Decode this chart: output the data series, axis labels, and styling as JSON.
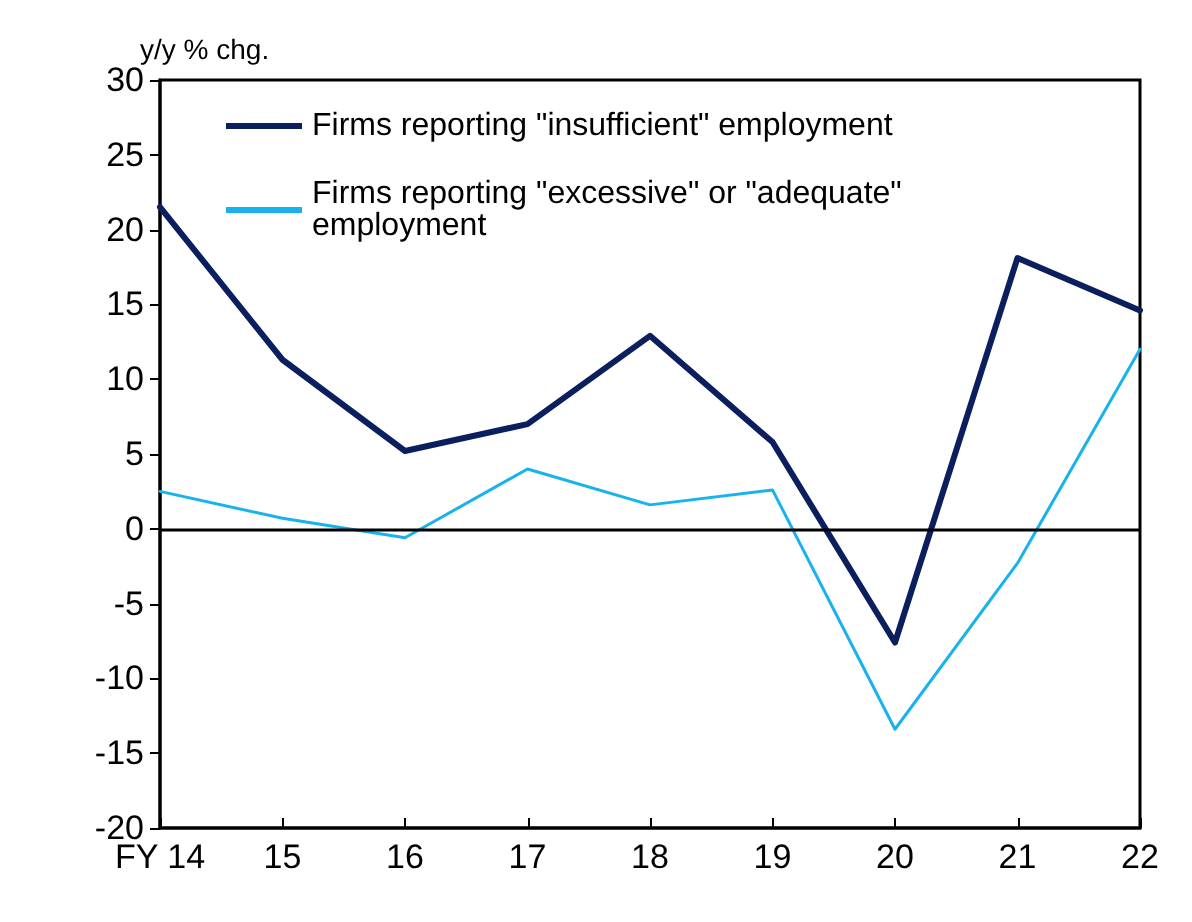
{
  "chart_data": {
    "type": "line",
    "ylabel": "y/y % chg.",
    "categories": [
      "FY 14",
      "15",
      "16",
      "17",
      "18",
      "19",
      "20",
      "21",
      "22"
    ],
    "series": [
      {
        "name": "Firms reporting \"insufficient\" employment",
        "color": "#0b1f5e",
        "values": [
          21.5,
          11.3,
          5.2,
          7.0,
          12.9,
          5.8,
          -7.6,
          18.1,
          14.6
        ]
      },
      {
        "name": "Firms reporting \"excessive\" or \"adequate\" employment",
        "color": "#1ab2ec",
        "values": [
          2.5,
          0.7,
          -0.6,
          4.0,
          1.6,
          2.6,
          -13.4,
          -2.3,
          12.0
        ]
      }
    ],
    "ylim": [
      -20,
      30
    ],
    "yticks": [
      -20,
      -15,
      -10,
      -5,
      0,
      5,
      10,
      15,
      20,
      25,
      30
    ],
    "ref_lines": [
      {
        "axis": "y",
        "value": 0,
        "color": "#000000"
      }
    ],
    "grid": false,
    "legend": "top left",
    "marker": "none",
    "line_style": "solid"
  }
}
